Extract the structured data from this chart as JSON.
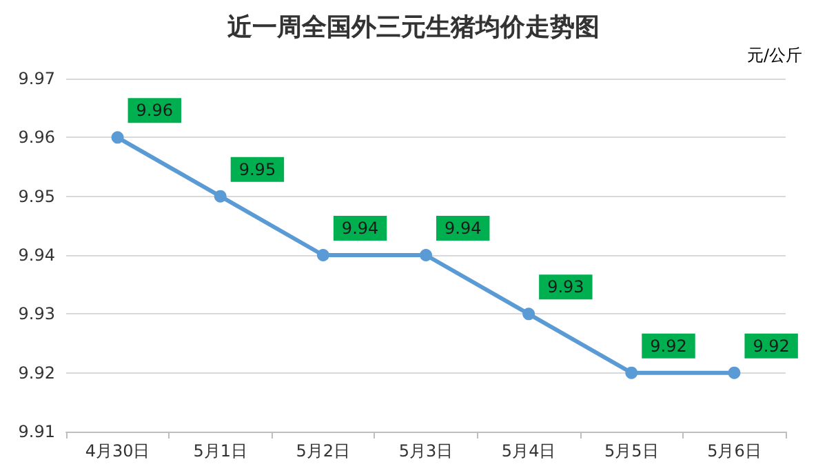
{
  "chart_data": {
    "type": "line",
    "title": "近一周全国外三元生猪均价走势图",
    "annotations": [
      "元/公斤"
    ],
    "categories": [
      "4月30日",
      "5月1日",
      "5月2日",
      "5月3日",
      "5月4日",
      "5月5日",
      "5月6日"
    ],
    "series": [
      {
        "color": "#5b9bd5",
        "values": [
          9.96,
          9.95,
          9.94,
          9.94,
          9.93,
          9.92,
          9.92
        ]
      }
    ],
    "ylim": [
      9.91,
      9.97
    ],
    "yticks": [
      9.91,
      9.92,
      9.93,
      9.94,
      9.95,
      9.96,
      9.97
    ],
    "grid": "y",
    "marker": "circle",
    "line_style": "solid",
    "data_labels": true
  }
}
